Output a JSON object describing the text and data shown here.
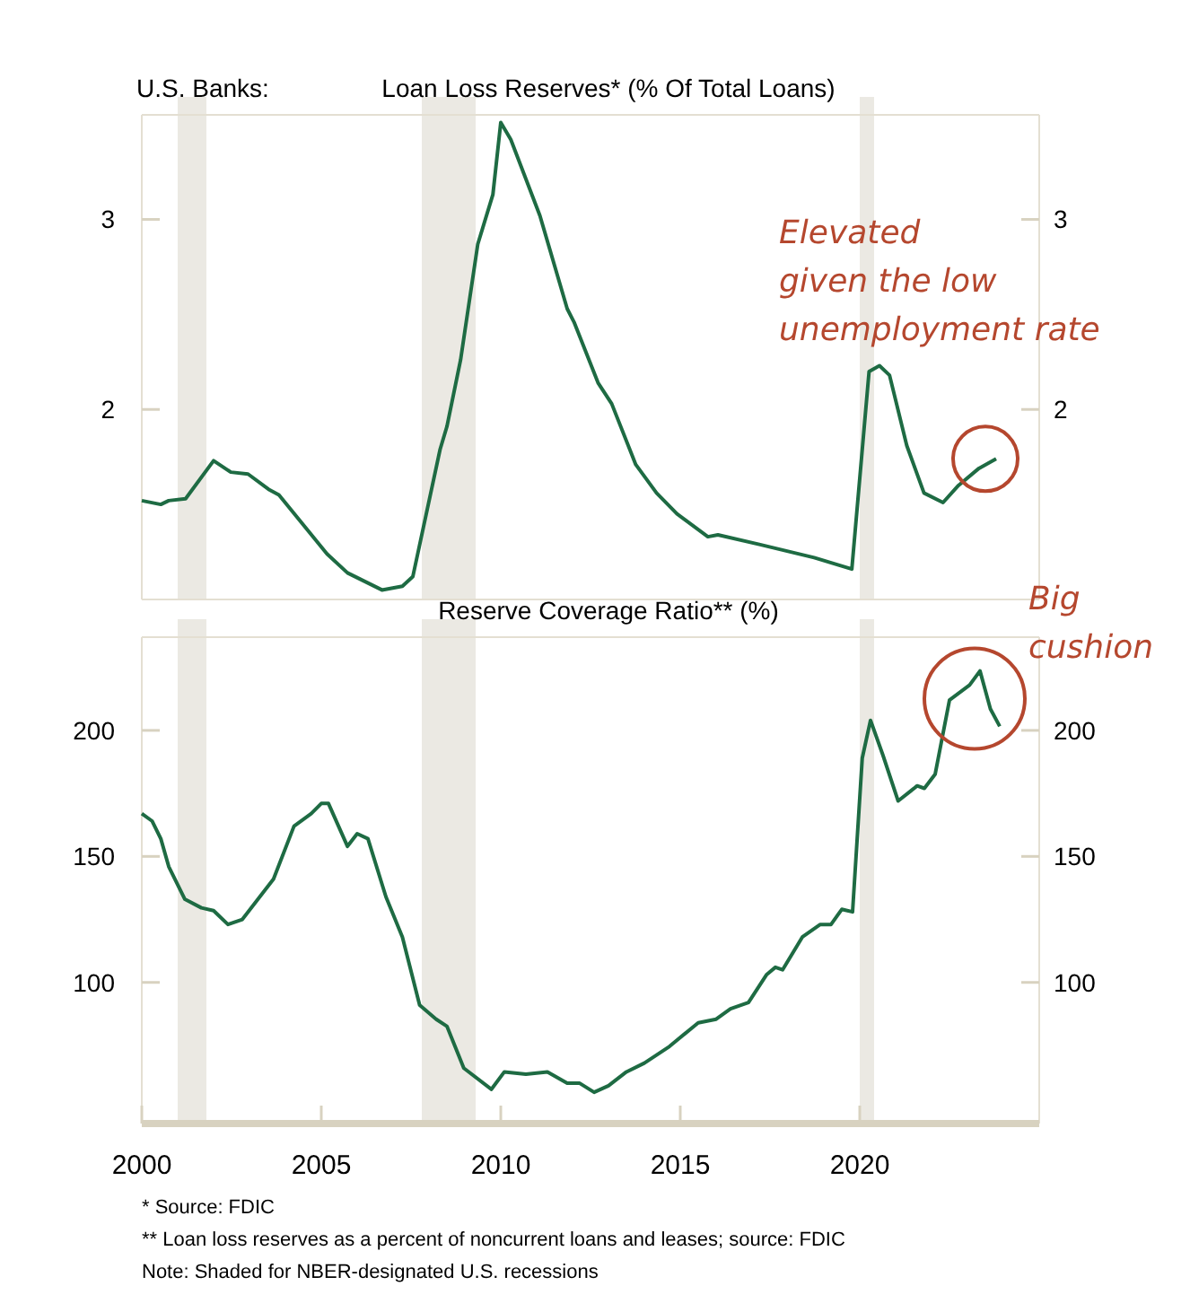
{
  "chart_data": [
    {
      "type": "line",
      "title": "Loan Loss Reserves* (% Of Total Loans)",
      "xlim": [
        2000,
        2025
      ],
      "ylim": [
        1.0,
        3.55
      ],
      "yticks": [
        2,
        3
      ],
      "y2lim": [
        1.0,
        3.55
      ],
      "y2ticks": [
        2,
        3
      ],
      "tick_labels": "y",
      "line_style": "solid",
      "bands": [
        {
          "axis": "x",
          "from": 2001.0,
          "to": 2001.8,
          "color": "#ebe9e3"
        },
        {
          "axis": "x",
          "from": 2007.8,
          "to": 2009.3,
          "color": "#ebe9e3"
        },
        {
          "axis": "x",
          "from": 2020.0,
          "to": 2020.4,
          "color": "#ebe9e3"
        }
      ],
      "annotations": [
        "U.S. Banks:",
        "Elevated\ngiven the low\nunemployment rate"
      ],
      "series": [
        {
          "color": "#1e6b43",
          "x": [
            2000,
            2000.53,
            2000.75,
            2001.22,
            2002.0,
            2002.48,
            2002.96,
            2003.53,
            2003.82,
            2005.16,
            2005.73,
            2006.69,
            2007.26,
            2007.55,
            2008.31,
            2008.5,
            2008.88,
            2009.36,
            2009.78,
            2010.0,
            2010.28,
            2011.09,
            2011.85,
            2012.04,
            2012.71,
            2013.09,
            2013.76,
            2014.34,
            2014.91,
            2015.77,
            2016.05,
            2017.2,
            2018.73,
            2019.78,
            2020.26,
            2020.55,
            2020.83,
            2021.31,
            2021.79,
            2022.32,
            2022.75,
            2023.32,
            2023.8
          ],
          "values": [
            1.52,
            1.5,
            1.52,
            1.53,
            1.73,
            1.67,
            1.66,
            1.58,
            1.55,
            1.24,
            1.14,
            1.05,
            1.07,
            1.12,
            1.79,
            1.91,
            2.26,
            2.87,
            3.13,
            3.51,
            3.42,
            3.02,
            2.53,
            2.46,
            2.14,
            2.03,
            1.71,
            1.56,
            1.45,
            1.33,
            1.34,
            1.29,
            1.22,
            1.16,
            2.2,
            2.23,
            2.18,
            1.81,
            1.56,
            1.51,
            1.6,
            1.69,
            1.74
          ]
        }
      ]
    },
    {
      "type": "line",
      "title": "Reserve Coverage Ratio** (%)",
      "xlim": [
        2000,
        2025
      ],
      "xticks": [
        2000,
        2005,
        2010,
        2015,
        2020
      ],
      "ylim": [
        44,
        237
      ],
      "yticks": [
        100,
        150,
        200
      ],
      "y2lim": [
        44,
        237
      ],
      "y2ticks": [
        100,
        150,
        200
      ],
      "line_style": "solid",
      "bands": [
        {
          "axis": "x",
          "from": 2001.0,
          "to": 2001.8,
          "color": "#ebe9e3"
        },
        {
          "axis": "x",
          "from": 2007.8,
          "to": 2009.3,
          "color": "#ebe9e3"
        },
        {
          "axis": "x",
          "from": 2020.0,
          "to": 2020.4,
          "color": "#ebe9e3"
        }
      ],
      "annotations": [
        "Big\ncushion",
        "*  Source: FDIC",
        "** Loan loss reserves as a percent of noncurrent loans and leases; source: FDIC",
        "Note: Shaded for NBER-designated U.S. recessions"
      ],
      "series": [
        {
          "color": "#1e6b43",
          "x": [
            2000,
            2000.29,
            2000.53,
            2000.75,
            2001.2,
            2001.66,
            2002.0,
            2002.4,
            2002.8,
            2003.67,
            2004.24,
            2004.72,
            2005.0,
            2005.2,
            2005.73,
            2006.0,
            2006.3,
            2006.8,
            2007.26,
            2007.74,
            2008.2,
            2008.5,
            2008.97,
            2009.74,
            2010.1,
            2010.7,
            2011.3,
            2011.85,
            2012.2,
            2012.6,
            2013.0,
            2013.5,
            2014.0,
            2014.7,
            2015.5,
            2016.0,
            2016.4,
            2016.9,
            2017.4,
            2017.65,
            2017.85,
            2018.4,
            2018.9,
            2019.2,
            2019.5,
            2019.8,
            2020.07,
            2020.3,
            2020.65,
            2021.07,
            2021.6,
            2021.8,
            2022.1,
            2022.5,
            2023.06,
            2023.35,
            2023.64,
            2023.9
          ],
          "values": [
            167,
            164,
            157,
            146,
            133,
            129.6,
            128.5,
            123,
            125,
            141,
            162,
            167,
            171,
            171,
            154,
            159,
            157,
            134,
            118,
            91,
            85.4,
            82.6,
            66,
            57.6,
            64.5,
            63.6,
            64.5,
            60,
            60,
            56.4,
            59,
            64.5,
            68,
            74.6,
            84,
            85.4,
            89.5,
            92,
            103,
            106,
            105,
            118,
            123,
            123,
            129,
            128,
            189,
            204,
            190,
            172,
            178,
            177,
            182.6,
            212,
            218,
            223.6,
            208.5,
            201.6
          ]
        }
      ]
    }
  ]
}
